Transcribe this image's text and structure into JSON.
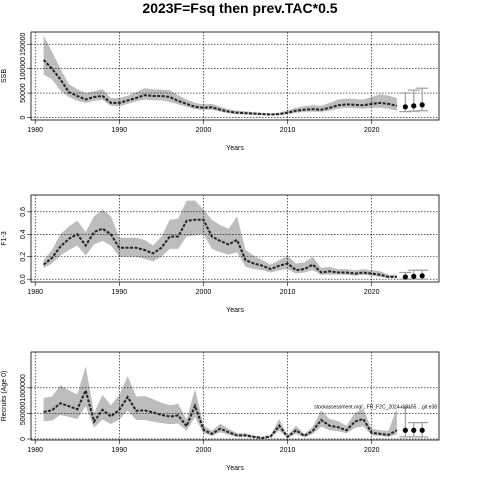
{
  "figure_title": "2023F=Fsq then prev.TAC*0.5",
  "colors": {
    "band": "#bdbdbd",
    "line": "#222222",
    "grid": "#000000",
    "proj_bar": "#9e9e9e"
  },
  "chart_data": [
    {
      "id": "ssb",
      "type": "line",
      "title": "",
      "xlabel": "Years",
      "ylabel": "SSB",
      "xlim": [
        1979.5,
        2028
      ],
      "ylim": [
        -5000,
        175000
      ],
      "xticks": [
        1980,
        1990,
        2000,
        2010,
        2020
      ],
      "yticks": [
        0,
        50000,
        100000,
        150000
      ],
      "ytick_labels": [
        "0",
        "50000",
        "100000",
        "150000"
      ],
      "grid": true,
      "x": [
        1981,
        1982,
        1983,
        1984,
        1985,
        1986,
        1987,
        1988,
        1989,
        1990,
        1991,
        1992,
        1993,
        1994,
        1995,
        1996,
        1997,
        1998,
        1999,
        2000,
        2001,
        2002,
        2003,
        2004,
        2005,
        2006,
        2007,
        2008,
        2009,
        2010,
        2011,
        2012,
        2013,
        2014,
        2015,
        2016,
        2017,
        2018,
        2019,
        2020,
        2021,
        2022,
        2023
      ],
      "values": [
        118000,
        100000,
        78000,
        52000,
        44000,
        37000,
        42000,
        44000,
        30000,
        30000,
        35000,
        40000,
        46000,
        44000,
        44000,
        42000,
        34000,
        28000,
        22000,
        20000,
        21000,
        16000,
        12000,
        10000,
        9000,
        8000,
        7000,
        6000,
        7000,
        10000,
        14000,
        16000,
        17000,
        16000,
        20000,
        25000,
        27000,
        26000,
        25000,
        28000,
        30000,
        28000,
        24000
      ],
      "lower": [
        88000,
        78000,
        55000,
        42000,
        34000,
        30000,
        34000,
        36000,
        24000,
        23000,
        28000,
        33000,
        37000,
        35000,
        35000,
        32000,
        27000,
        22000,
        17000,
        16000,
        16000,
        12000,
        9000,
        7000,
        6000,
        5500,
        5000,
        4500,
        5000,
        7000,
        10000,
        12000,
        12000,
        12000,
        14000,
        18000,
        20000,
        19000,
        18000,
        20000,
        20000,
        18000,
        14000
      ],
      "upper": [
        168000,
        135000,
        100000,
        68000,
        58000,
        50000,
        54000,
        58000,
        40000,
        40000,
        45000,
        52000,
        60000,
        58000,
        57000,
        56000,
        46000,
        37000,
        30000,
        27000,
        28000,
        22000,
        17000,
        14000,
        13000,
        11000,
        10000,
        9000,
        10000,
        15000,
        20000,
        23000,
        25000,
        24000,
        30000,
        37000,
        39000,
        38000,
        37000,
        42000,
        48000,
        45000,
        40000
      ],
      "projection": {
        "x": [
          2024,
          2025,
          2026
        ],
        "values": [
          22000,
          24000,
          26000
        ],
        "lower": [
          12000,
          13000,
          14000
        ],
        "upper": [
          50000,
          56000,
          60000
        ]
      }
    },
    {
      "id": "fbar",
      "type": "line",
      "title": "",
      "xlabel": "Years",
      "ylabel": "F1-3",
      "xlim": [
        1979.5,
        2028
      ],
      "ylim": [
        -0.025,
        0.75
      ],
      "xticks": [
        1980,
        1990,
        2000,
        2010,
        2020
      ],
      "yticks": [
        0.0,
        0.2,
        0.4,
        0.6
      ],
      "ytick_labels": [
        "0.0",
        "0.2",
        "0.4",
        "0.6"
      ],
      "grid": true,
      "x": [
        1981,
        1982,
        1983,
        1984,
        1985,
        1986,
        1987,
        1988,
        1989,
        1990,
        1991,
        1992,
        1993,
        1994,
        1995,
        1996,
        1997,
        1998,
        1999,
        2000,
        2001,
        2002,
        2003,
        2004,
        2005,
        2006,
        2007,
        2008,
        2009,
        2010,
        2011,
        2012,
        2013,
        2014,
        2015,
        2016,
        2017,
        2018,
        2019,
        2020,
        2021,
        2022,
        2023
      ],
      "values": [
        0.13,
        0.19,
        0.29,
        0.36,
        0.4,
        0.3,
        0.42,
        0.45,
        0.4,
        0.28,
        0.28,
        0.28,
        0.26,
        0.23,
        0.28,
        0.38,
        0.38,
        0.52,
        0.53,
        0.53,
        0.38,
        0.34,
        0.31,
        0.35,
        0.17,
        0.14,
        0.12,
        0.09,
        0.12,
        0.14,
        0.08,
        0.09,
        0.13,
        0.06,
        0.07,
        0.06,
        0.06,
        0.05,
        0.06,
        0.05,
        0.04,
        0.02,
        0.02
      ],
      "lower": [
        0.1,
        0.14,
        0.21,
        0.26,
        0.3,
        0.21,
        0.31,
        0.34,
        0.3,
        0.2,
        0.2,
        0.2,
        0.18,
        0.16,
        0.2,
        0.27,
        0.27,
        0.38,
        0.39,
        0.4,
        0.27,
        0.24,
        0.22,
        0.24,
        0.11,
        0.09,
        0.08,
        0.06,
        0.08,
        0.09,
        0.05,
        0.06,
        0.08,
        0.04,
        0.04,
        0.04,
        0.04,
        0.03,
        0.04,
        0.03,
        0.02,
        0.01,
        0.01
      ],
      "upper": [
        0.17,
        0.26,
        0.4,
        0.47,
        0.52,
        0.42,
        0.56,
        0.62,
        0.56,
        0.37,
        0.37,
        0.37,
        0.35,
        0.3,
        0.38,
        0.53,
        0.54,
        0.7,
        0.7,
        0.62,
        0.53,
        0.48,
        0.45,
        0.56,
        0.26,
        0.21,
        0.17,
        0.13,
        0.17,
        0.21,
        0.14,
        0.15,
        0.2,
        0.1,
        0.11,
        0.09,
        0.09,
        0.08,
        0.09,
        0.08,
        0.07,
        0.04,
        0.04
      ],
      "projection": {
        "x": [
          2024,
          2025,
          2026
        ],
        "values": [
          0.02,
          0.025,
          0.03
        ],
        "lower": [
          0.0,
          0.0,
          0.0
        ],
        "upper": [
          0.06,
          0.08,
          0.08
        ]
      }
    },
    {
      "id": "rec",
      "type": "line",
      "title": "",
      "xlabel": "Years",
      "ylabel": "Recruits (Age 0)",
      "xlim": [
        1979.5,
        2028
      ],
      "ylim": [
        -20000,
        1700000
      ],
      "xticks": [
        1980,
        1990,
        2000,
        2010,
        2020
      ],
      "yticks": [
        0,
        500000,
        1000000
      ],
      "ytick_labels": [
        "0",
        "500000",
        "1000000"
      ],
      "grid": true,
      "x": [
        1981,
        1982,
        1983,
        1984,
        1985,
        1986,
        1987,
        1988,
        1989,
        1990,
        1991,
        1992,
        1993,
        1994,
        1995,
        1996,
        1997,
        1998,
        1999,
        2000,
        2001,
        2002,
        2003,
        2004,
        2005,
        2006,
        2007,
        2008,
        2009,
        2010,
        2011,
        2012,
        2013,
        2014,
        2015,
        2016,
        2017,
        2018,
        2019,
        2020,
        2021,
        2022,
        2023
      ],
      "values": [
        530000,
        560000,
        700000,
        640000,
        580000,
        950000,
        340000,
        570000,
        440000,
        570000,
        820000,
        550000,
        560000,
        520000,
        470000,
        440000,
        460000,
        250000,
        650000,
        180000,
        100000,
        200000,
        130000,
        70000,
        70000,
        40000,
        20000,
        50000,
        260000,
        40000,
        170000,
        60000,
        160000,
        370000,
        260000,
        230000,
        170000,
        340000,
        390000,
        120000,
        100000,
        80000,
        170000
      ],
      "lower": [
        350000,
        360000,
        470000,
        430000,
        390000,
        640000,
        220000,
        380000,
        290000,
        380000,
        550000,
        370000,
        370000,
        340000,
        310000,
        290000,
        300000,
        160000,
        430000,
        110000,
        60000,
        130000,
        80000,
        40000,
        40000,
        20000,
        10000,
        30000,
        160000,
        20000,
        100000,
        35000,
        100000,
        240000,
        170000,
        150000,
        110000,
        220000,
        250000,
        70000,
        60000,
        40000,
        90000
      ],
      "upper": [
        800000,
        830000,
        1050000,
        950000,
        870000,
        1420000,
        510000,
        860000,
        660000,
        860000,
        1230000,
        830000,
        840000,
        780000,
        710000,
        660000,
        690000,
        380000,
        980000,
        270000,
        160000,
        300000,
        200000,
        110000,
        110000,
        70000,
        40000,
        80000,
        390000,
        70000,
        260000,
        100000,
        240000,
        560000,
        390000,
        350000,
        260000,
        510000,
        590000,
        200000,
        170000,
        160000,
        600000
      ],
      "projection": {
        "x": [
          2024,
          2025,
          2026
        ],
        "values": [
          170000,
          170000,
          170000
        ],
        "lower": [
          40000,
          40000,
          40000
        ],
        "upper": [
          620000,
          320000,
          320000
        ]
      },
      "annotation": "stockassessment.org/...FR_F2C_2024 r18155 ...git e38"
    }
  ]
}
